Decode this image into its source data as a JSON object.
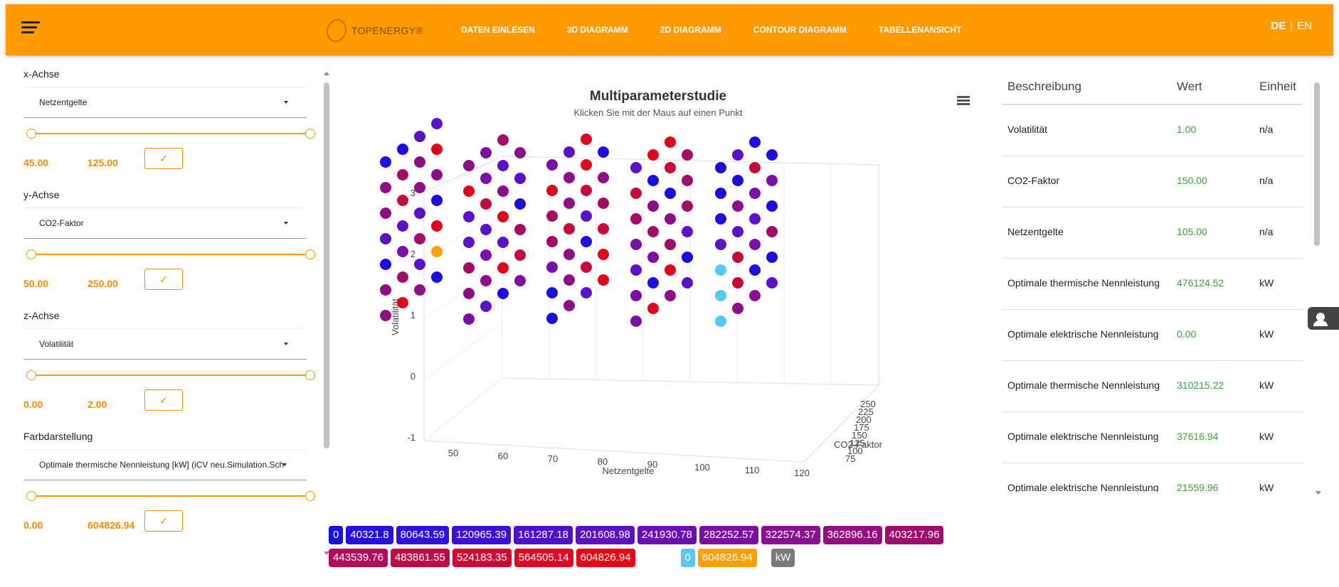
{
  "header": {
    "logo_text": "TOPENERGY®",
    "nav": [
      "DATEN EINLESEN",
      "3D DIAGRAMM",
      "2D DIAGRAMM",
      "CONTOUR DIAGRAMM",
      "TABELLENANSICHT"
    ],
    "lang_de": "DE",
    "lang_sep": "|",
    "lang_en": "EN"
  },
  "axes": {
    "x": {
      "label": "x-Achse",
      "selected": "Netzentgelte",
      "min": "45.00",
      "max": "125.00"
    },
    "y": {
      "label": "y-Achse",
      "selected": "CO2-Faktor",
      "min": "50.00",
      "max": "250.00"
    },
    "z": {
      "label": "z-Achse",
      "selected": "Volatilität",
      "min": "0.00",
      "max": "2.00"
    },
    "color": {
      "label": "Farbdarstellung",
      "selected": "Optimale thermische Nennleistung [kW] (iCV neu.Simulation.Sch",
      "min": "0.00",
      "max": "604826.94"
    },
    "apply_icon": "check-icon"
  },
  "chart": {
    "title": "Multiparameterstudie",
    "subtitle": "Klicken Sie mit der Maus auf einen Punkt",
    "menu_icon": "menu-icon"
  },
  "chart_data": {
    "type": "scatter",
    "title": "Multiparameterstudie",
    "subtitle": "Klicken Sie mit der Maus auf einen Punkt",
    "xlabel": "Netzentgelte",
    "ylabel": "Volatilität",
    "zlabel": "CO2-Faktor",
    "x_ticks": [
      "50",
      "60",
      "70",
      "80",
      "90",
      "100",
      "110",
      "120"
    ],
    "y_ticks": [
      "-1",
      "0",
      "1",
      "2",
      "3"
    ],
    "z_ticks": [
      "75",
      "100",
      "125",
      "150",
      "175",
      "200",
      "225",
      "250"
    ],
    "xlim": [
      45,
      125
    ],
    "ylim": [
      -1,
      3
    ],
    "zlim": [
      50,
      250
    ],
    "color_scale": [
      "#1a0fe0",
      "#5a12c8",
      "#7a10a8",
      "#8d0e88",
      "#a50c64",
      "#c70a3c",
      "#e0061c"
    ]
  },
  "legend": {
    "row1": [
      {
        "label": "0",
        "color": "#1a0fe0"
      },
      {
        "label": "40321.8",
        "color": "#2510e0"
      },
      {
        "label": "80643.59",
        "color": "#3010dc"
      },
      {
        "label": "120965.39",
        "color": "#3e10d6"
      },
      {
        "label": "161287.18",
        "color": "#4d10cc"
      },
      {
        "label": "201608.98",
        "color": "#5c10c0"
      },
      {
        "label": "241930.78",
        "color": "#6a10b2"
      },
      {
        "label": "282252.57",
        "color": "#7910a2"
      },
      {
        "label": "322574.37",
        "color": "#860f92"
      },
      {
        "label": "362896.16",
        "color": "#930e80"
      },
      {
        "label": "403217.96",
        "color": "#a00c6e"
      }
    ],
    "row2": [
      {
        "label": "443539.76",
        "color": "#b00b5c"
      },
      {
        "label": "483861.55",
        "color": "#c00a48"
      },
      {
        "label": "524183.35",
        "color": "#d00836"
      },
      {
        "label": "564505.14",
        "color": "#de0724"
      },
      {
        "label": "604826.94",
        "color": "#ea0514"
      }
    ],
    "extra": [
      {
        "label": "0",
        "color": "#57c8f0"
      },
      {
        "label": "604826.94",
        "color": "#ffa000"
      },
      {
        "label": "kW",
        "color": "#7a7a7a"
      }
    ]
  },
  "table": {
    "headers": [
      "Beschreibung",
      "Wert",
      "Einheit"
    ],
    "rows": [
      {
        "d": "Volatilität",
        "w": "1.00",
        "u": "n/a"
      },
      {
        "d": "CO2-Faktor",
        "w": "150.00",
        "u": "n/a"
      },
      {
        "d": "Netzentgelte",
        "w": "105.00",
        "u": "n/a"
      },
      {
        "d": "Optimale thermische Nennleistung",
        "w": "476124.52",
        "u": "kW"
      },
      {
        "d": "Optimale elektrische Nennleistung",
        "w": "0.00",
        "u": "kW"
      },
      {
        "d": "Optimale thermische Nennleistung",
        "w": "310215.22",
        "u": "kW"
      },
      {
        "d": "Optimale elektrische Nennleistung",
        "w": "37616.94",
        "u": "kW"
      },
      {
        "d": "Optimale elektrische Nennleistung",
        "w": "21559.96",
        "u": "kW"
      }
    ]
  }
}
